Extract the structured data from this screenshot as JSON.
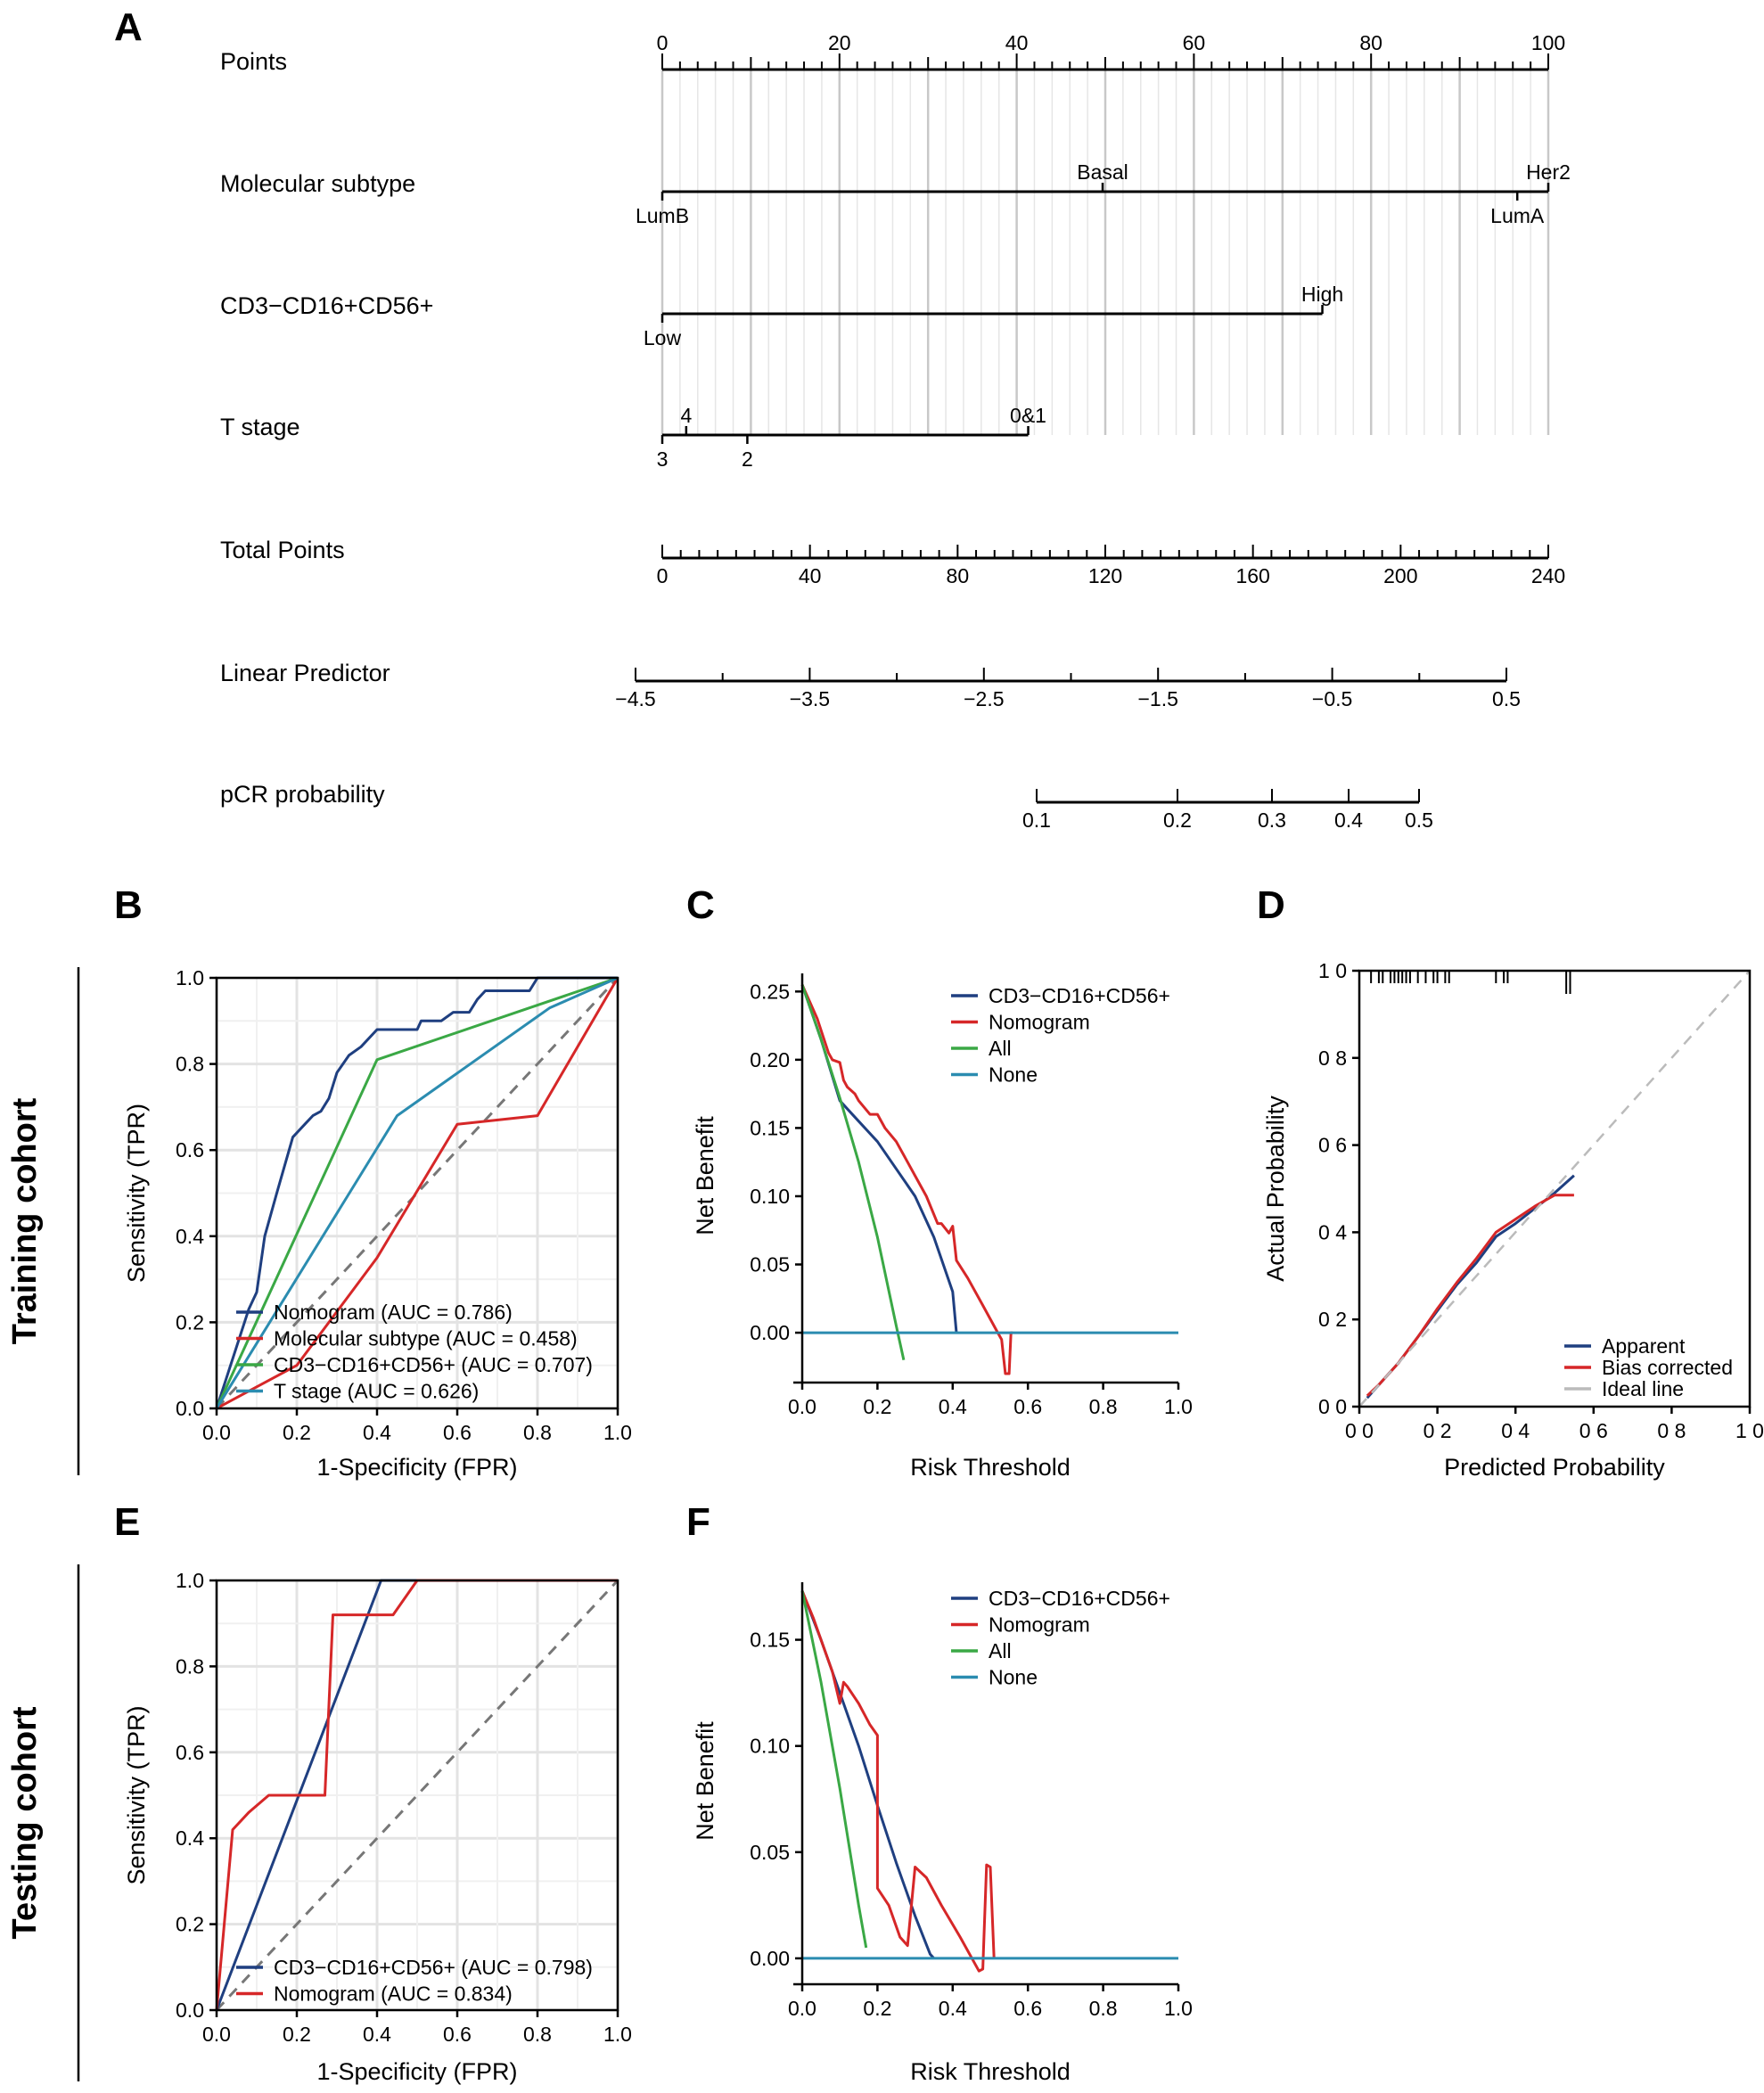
{
  "panel_labels": [
    "A",
    "B",
    "C",
    "D",
    "E",
    "F"
  ],
  "cohort_labels": {
    "training": "Training cohort",
    "testing": "Testing cohort"
  },
  "nomogram": {
    "rows": [
      {
        "label": "Points",
        "ticks_major": [
          0,
          20,
          40,
          60,
          80,
          100
        ],
        "range": [
          0,
          100
        ]
      },
      {
        "label": "Molecular subtype",
        "levels_above": [
          {
            "text": "Basal",
            "points": 49.7
          },
          {
            "text": "Her2",
            "points": 100
          }
        ],
        "levels_below": [
          {
            "text": "LumB",
            "points": 0
          },
          {
            "text": "LumA",
            "points": 96.5
          }
        ]
      },
      {
        "label": "CD3−CD16+CD56+",
        "levels_above": [
          {
            "text": "High",
            "points": 74.5
          }
        ],
        "levels_below": [
          {
            "text": "Low",
            "points": 0
          }
        ]
      },
      {
        "label": "T stage",
        "levels_above": [
          {
            "text": "4",
            "points": 2.7
          },
          {
            "text": "0&1",
            "points": 41.3
          }
        ],
        "levels_below": [
          {
            "text": "3",
            "points": 0
          },
          {
            "text": "2",
            "points": 9.6
          }
        ]
      },
      {
        "label": "Total Points",
        "ticks_major": [
          0,
          40,
          80,
          120,
          160,
          200,
          240
        ],
        "range": [
          0,
          240
        ]
      },
      {
        "label": "Linear Predictor",
        "ticks_major": [
          "−4.5",
          "−3.5",
          "−2.5",
          "−1.5",
          "−0.5",
          "0.5"
        ],
        "range": [
          -4.5,
          0.5
        ]
      },
      {
        "label": "pCR probability",
        "ticks_major": [
          "0.1",
          "0.2",
          "0.3",
          "0.4",
          "0.5"
        ],
        "range": [
          0.1,
          0.5
        ]
      }
    ]
  },
  "chart_data": [
    {
      "id": "B",
      "type": "line",
      "title": "",
      "xlabel": "1-Specificity (FPR)",
      "ylabel": "Sensitivity (TPR)",
      "xlim": [
        0,
        1
      ],
      "ylim": [
        0,
        1
      ],
      "xticks": [
        "0.0",
        "0.2",
        "0.4",
        "0.6",
        "0.8",
        "1.0"
      ],
      "yticks": [
        "0.0",
        "0.2",
        "0.4",
        "0.6",
        "0.8",
        "1.0"
      ],
      "grid": true,
      "series": [
        {
          "name": "Nomogram (AUC = 0.786)",
          "color": "#1f3f80",
          "x": [
            0,
            0.08,
            0.1,
            0.12,
            0.15,
            0.19,
            0.22,
            0.24,
            0.26,
            0.28,
            0.3,
            0.33,
            0.36,
            0.4,
            0.43,
            0.46,
            0.5,
            0.51,
            0.56,
            0.59,
            0.63,
            0.65,
            0.67,
            0.71,
            0.78,
            0.8,
            0.86,
            0.93,
            1.0
          ],
          "y": [
            0,
            0.23,
            0.27,
            0.4,
            0.5,
            0.63,
            0.66,
            0.68,
            0.69,
            0.72,
            0.78,
            0.82,
            0.84,
            0.88,
            0.88,
            0.88,
            0.88,
            0.9,
            0.9,
            0.92,
            0.92,
            0.95,
            0.97,
            0.97,
            0.97,
            1.0,
            1.0,
            1.0,
            1.0
          ]
        },
        {
          "name": "Molecular subtype (AUC = 0.458)",
          "color": "#d62728",
          "x": [
            0,
            0.2,
            0.4,
            0.6,
            0.8,
            1.0
          ],
          "y": [
            0,
            0.1,
            0.35,
            0.66,
            0.68,
            1.0
          ]
        },
        {
          "name": "CD3−CD16+CD56+ (AUC = 0.707)",
          "color": "#3aa845",
          "x": [
            0,
            0.4,
            1.0
          ],
          "y": [
            0,
            0.81,
            1.0
          ]
        },
        {
          "name": "T stage (AUC = 0.626)",
          "color": "#2b8cb0",
          "x": [
            0,
            0.45,
            0.83,
            1.0
          ],
          "y": [
            0,
            0.68,
            0.93,
            1.0
          ]
        }
      ],
      "reference_line": "diagonal dashed",
      "legend": "bottom-right"
    },
    {
      "id": "C",
      "type": "line",
      "title": "",
      "xlabel": "Risk Threshold",
      "ylabel": "Net Benefit",
      "xlim": [
        0,
        1
      ],
      "ylim": [
        -0.03,
        0.26
      ],
      "xticks": [
        "0.0",
        "0.2",
        "0.4",
        "0.6",
        "0.8",
        "1.0"
      ],
      "yticks": [
        "0.00",
        "0.05",
        "0.10",
        "0.15",
        "0.20",
        "0.25"
      ],
      "grid": false,
      "series": [
        {
          "name": "CD3−CD16+CD56+",
          "color": "#1f3f80",
          "x": [
            0,
            0.05,
            0.1,
            0.15,
            0.2,
            0.25,
            0.3,
            0.35,
            0.4,
            0.41
          ],
          "y": [
            0.255,
            0.215,
            0.17,
            0.155,
            0.14,
            0.12,
            0.1,
            0.07,
            0.03,
            0.0
          ]
        },
        {
          "name": "Nomogram",
          "color": "#d62728",
          "x": [
            0,
            0.04,
            0.07,
            0.08,
            0.1,
            0.11,
            0.12,
            0.14,
            0.15,
            0.18,
            0.2,
            0.22,
            0.25,
            0.28,
            0.3,
            0.33,
            0.36,
            0.37,
            0.39,
            0.4,
            0.41,
            0.44,
            0.48,
            0.52,
            0.53,
            0.54,
            0.55,
            0.555,
            0.56
          ],
          "y": [
            0.255,
            0.23,
            0.205,
            0.2,
            0.198,
            0.185,
            0.18,
            0.175,
            0.17,
            0.16,
            0.16,
            0.15,
            0.14,
            0.125,
            0.115,
            0.1,
            0.08,
            0.08,
            0.073,
            0.078,
            0.053,
            0.04,
            0.02,
            0.0,
            -0.005,
            -0.03,
            -0.03,
            0.0,
            0.0
          ]
        },
        {
          "name": "All",
          "color": "#3aa845",
          "x": [
            0,
            0.05,
            0.1,
            0.15,
            0.2,
            0.25,
            0.27
          ],
          "y": [
            0.255,
            0.215,
            0.172,
            0.125,
            0.07,
            0.005,
            -0.02
          ]
        },
        {
          "name": "None",
          "color": "#2b8cb0",
          "x": [
            0,
            1.0
          ],
          "y": [
            0,
            0
          ]
        }
      ],
      "legend": "top-right"
    },
    {
      "id": "D",
      "type": "line",
      "title": "",
      "xlabel": "Predicted Probability",
      "ylabel": "Actual Probability",
      "xlim": [
        0,
        1
      ],
      "ylim": [
        0,
        1
      ],
      "xticks": [
        "0 0",
        "0 2",
        "0 4",
        "0 6",
        "0 8",
        "1 0"
      ],
      "yticks": [
        "0 0",
        "0 2",
        "0 4",
        "0 6",
        "0 8",
        "1 0"
      ],
      "grid": false,
      "series": [
        {
          "name": "Apparent",
          "color": "#1f3f80",
          "x": [
            0.02,
            0.05,
            0.1,
            0.15,
            0.2,
            0.25,
            0.3,
            0.35,
            0.4,
            0.45,
            0.5,
            0.55
          ],
          "y": [
            0.02,
            0.05,
            0.1,
            0.16,
            0.22,
            0.28,
            0.33,
            0.39,
            0.42,
            0.455,
            0.49,
            0.53
          ]
        },
        {
          "name": "Bias corrected",
          "color": "#d62728",
          "x": [
            0.02,
            0.05,
            0.1,
            0.15,
            0.2,
            0.25,
            0.3,
            0.35,
            0.4,
            0.45,
            0.5,
            0.55
          ],
          "y": [
            0.025,
            0.05,
            0.1,
            0.16,
            0.225,
            0.285,
            0.34,
            0.4,
            0.43,
            0.46,
            0.485,
            0.485
          ]
        },
        {
          "name": "Ideal line",
          "color": "#bbbbbb",
          "x": [
            0,
            1
          ],
          "y": [
            0,
            1
          ]
        }
      ],
      "rug_x": [
        0.03,
        0.05,
        0.06,
        0.08,
        0.09,
        0.1,
        0.11,
        0.12,
        0.13,
        0.15,
        0.17,
        0.19,
        0.2,
        0.22,
        0.23,
        0.35,
        0.37,
        0.38,
        0.53,
        0.54
      ],
      "legend": "bottom-right"
    },
    {
      "id": "E",
      "type": "line",
      "title": "",
      "xlabel": "1-Specificity (FPR)",
      "ylabel": "Sensitivity (TPR)",
      "xlim": [
        0,
        1
      ],
      "ylim": [
        0,
        1
      ],
      "xticks": [
        "0.0",
        "0.2",
        "0.4",
        "0.6",
        "0.8",
        "1.0"
      ],
      "yticks": [
        "0.0",
        "0.2",
        "0.4",
        "0.6",
        "0.8",
        "1.0"
      ],
      "grid": true,
      "series": [
        {
          "name": "CD3−CD16+CD56+ (AUC = 0.798)",
          "color": "#1f3f80",
          "x": [
            0,
            0.41,
            1.0
          ],
          "y": [
            0,
            1.0,
            1.0
          ]
        },
        {
          "name": "Nomogram (AUC = 0.834)",
          "color": "#d62728",
          "x": [
            0,
            0.04,
            0.08,
            0.13,
            0.27,
            0.29,
            0.44,
            0.5,
            1.0
          ],
          "y": [
            0,
            0.42,
            0.46,
            0.5,
            0.5,
            0.92,
            0.92,
            1.0,
            1.0
          ]
        }
      ],
      "reference_line": "diagonal dashed",
      "legend": "bottom-right"
    },
    {
      "id": "F",
      "type": "line",
      "title": "",
      "xlabel": "Risk Threshold",
      "ylabel": "Net Benefit",
      "xlim": [
        0,
        1
      ],
      "ylim": [
        -0.008,
        0.175
      ],
      "xticks": [
        "0.0",
        "0.2",
        "0.4",
        "0.6",
        "0.8",
        "1.0"
      ],
      "yticks": [
        "0.00",
        "0.05",
        "0.10",
        "0.15"
      ],
      "grid": false,
      "series": [
        {
          "name": "CD3−CD16+CD56+",
          "color": "#1f3f80",
          "x": [
            0,
            0.05,
            0.1,
            0.15,
            0.2,
            0.25,
            0.3,
            0.34,
            0.35
          ],
          "y": [
            0.173,
            0.15,
            0.125,
            0.1,
            0.072,
            0.045,
            0.02,
            0.002,
            0.0
          ]
        },
        {
          "name": "Nomogram",
          "color": "#d62728",
          "x": [
            0,
            0.03,
            0.05,
            0.08,
            0.1,
            0.11,
            0.12,
            0.15,
            0.18,
            0.2,
            0.2,
            0.23,
            0.26,
            0.28,
            0.3,
            0.33,
            0.37,
            0.42,
            0.47,
            0.48,
            0.49,
            0.5,
            0.51,
            0.51
          ],
          "y": [
            0.173,
            0.16,
            0.15,
            0.135,
            0.12,
            0.13,
            0.128,
            0.12,
            0.11,
            0.105,
            0.033,
            0.025,
            0.01,
            0.006,
            0.043,
            0.038,
            0.025,
            0.01,
            -0.006,
            -0.005,
            0.044,
            0.043,
            0.0,
            0.0
          ]
        },
        {
          "name": "All",
          "color": "#3aa845",
          "x": [
            0,
            0.05,
            0.1,
            0.15,
            0.17
          ],
          "y": [
            0.173,
            0.13,
            0.08,
            0.025,
            0.005
          ]
        },
        {
          "name": "None",
          "color": "#2b8cb0",
          "x": [
            0,
            1.0
          ],
          "y": [
            0,
            0
          ]
        }
      ],
      "legend": "top-right"
    }
  ]
}
